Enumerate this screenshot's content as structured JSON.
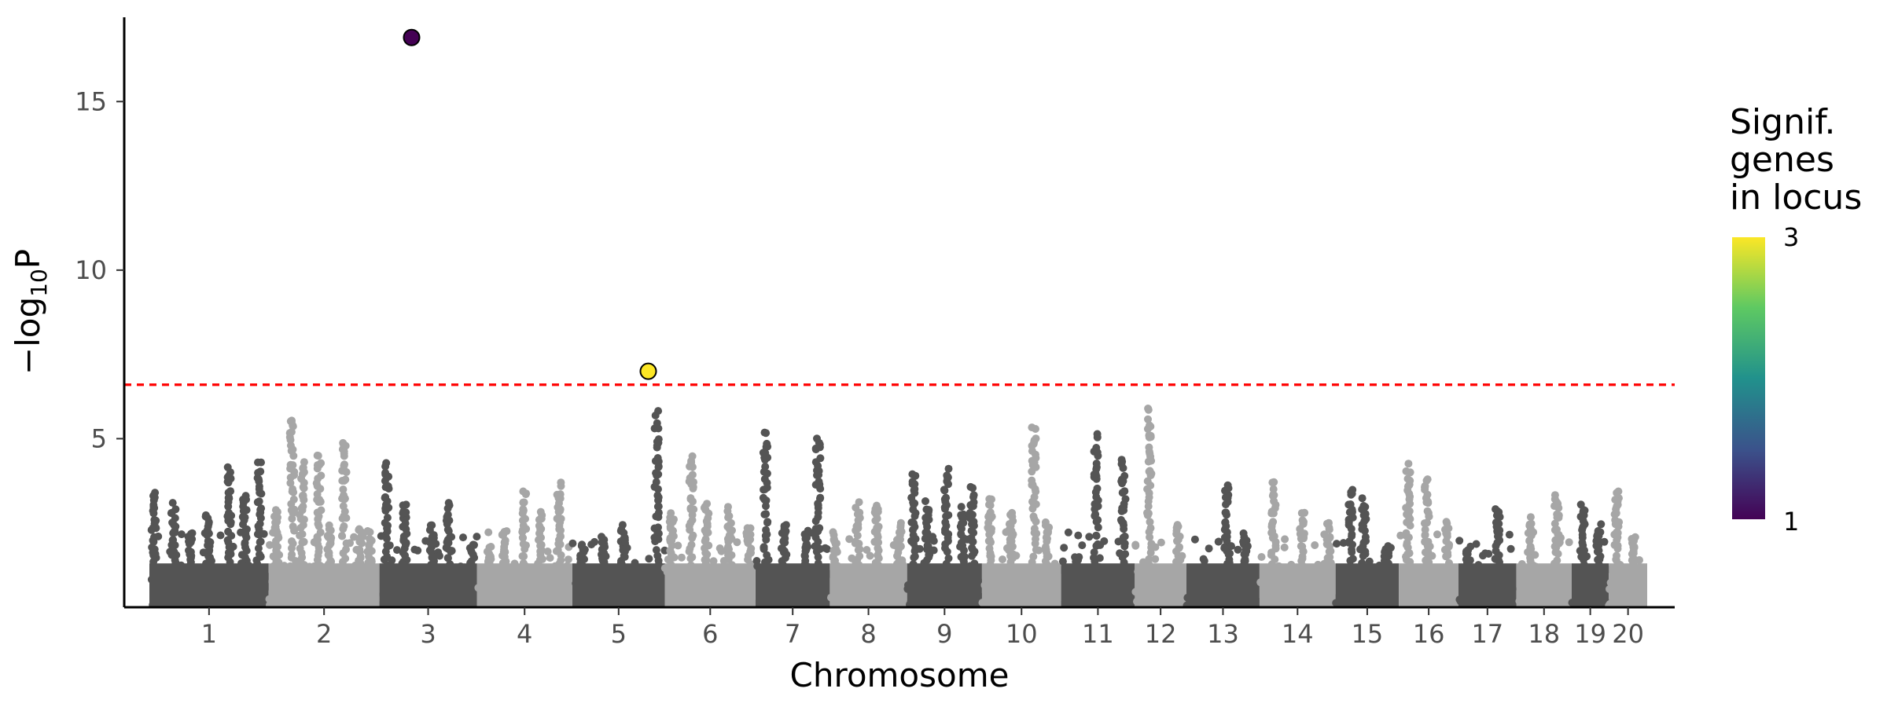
{
  "chart_data": {
    "type": "scatter",
    "subtype": "manhattan",
    "xlabel": "Chromosome",
    "ylabel": {
      "prefix": "−log",
      "subscript": "10",
      "suffix": "P"
    },
    "ylim": [
      0,
      17.5
    ],
    "yticks": [
      5,
      10,
      15
    ],
    "grid": false,
    "significance_threshold": 6.6,
    "threshold_color": "#ff0000",
    "chromosome_colors": [
      "#545454",
      "#a6a6a6"
    ],
    "chromosomes": [
      {
        "label": "1",
        "peaks": [
          3.5,
          3.1,
          2.3,
          2.8,
          4.3,
          3.4,
          4.4
        ]
      },
      {
        "label": "2",
        "peaks": [
          3.0,
          5.9,
          4.4,
          4.6,
          2.5,
          5.2,
          2.4,
          2.4
        ]
      },
      {
        "label": "3",
        "peaks": [
          4.4,
          3.2,
          2.5,
          3.1,
          2.0
        ]
      },
      {
        "label": "4",
        "peaks": [
          1.9,
          2.4,
          3.6,
          2.9,
          3.8
        ]
      },
      {
        "label": "5",
        "peaks": [
          1.9,
          2.1,
          2.5,
          1.2,
          5.9
        ]
      },
      {
        "label": "6",
        "peaks": [
          2.9,
          4.6,
          3.2,
          3.0,
          2.5
        ]
      },
      {
        "label": "7",
        "peaks": [
          5.4,
          2.6,
          2.3,
          5.2
        ]
      },
      {
        "label": "8",
        "peaks": [
          2.3,
          3.2,
          3.2,
          2.6
        ]
      },
      {
        "label": "9",
        "peaks": [
          4.1,
          3.2,
          4.2,
          3.0,
          3.7
        ]
      },
      {
        "label": "10",
        "peaks": [
          3.3,
          2.9,
          5.5,
          2.6
        ]
      },
      {
        "label": "11",
        "peaks": [
          1.6,
          5.2,
          4.5
        ]
      },
      {
        "label": "12",
        "peaks": [
          6.0,
          2.5
        ]
      },
      {
        "label": "13",
        "peaks": [
          1.0,
          3.8,
          2.3
        ]
      },
      {
        "label": "14",
        "peaks": [
          3.8,
          2.9,
          2.6
        ]
      },
      {
        "label": "15",
        "peaks": [
          3.7,
          3.3,
          1.8
        ]
      },
      {
        "label": "16",
        "peaks": [
          4.3,
          4.0,
          2.6
        ]
      },
      {
        "label": "17",
        "peaks": [
          1.9,
          3.1
        ]
      },
      {
        "label": "18",
        "peaks": [
          2.7,
          3.5
        ]
      },
      {
        "label": "19",
        "peaks": [
          3.2,
          2.5
        ]
      },
      {
        "label": "20",
        "peaks": [
          3.6,
          2.1
        ]
      }
    ],
    "highlighted_points": [
      {
        "chromosome": "3",
        "y": 16.9,
        "signif_genes": 1
      },
      {
        "chromosome": "5",
        "y": 7.0,
        "signif_genes": 3
      }
    ],
    "legend": {
      "title": [
        "Signif.",
        "genes",
        "in locus"
      ],
      "min": 1,
      "max": 3,
      "min_label": "1",
      "max_label": "3",
      "colormap": [
        "#440154",
        "#3b528b",
        "#21918c",
        "#5ec962",
        "#fde725"
      ],
      "placement": "right"
    }
  }
}
